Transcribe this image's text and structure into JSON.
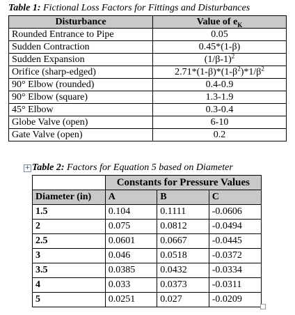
{
  "table1": {
    "caption_label": "Table 1:",
    "caption_text": "Fictional Loss Factors for Fittings and Disturbances",
    "header_col1": "Disturbance",
    "header_col2_text": "Value of e",
    "header_col2_sub": "K",
    "rows": [
      {
        "name": "Rounded Entrance to Pipe",
        "value": "0.05"
      },
      {
        "name": "Sudden Contraction",
        "value": "0.45*(1-β)"
      },
      {
        "name": "Sudden Expansion",
        "value": "(1/β-1)",
        "value_sup": "2"
      },
      {
        "name": "Orifice (sharp-edged)",
        "value_parts": [
          "2.71*(1-β)*(1-β",
          "2",
          ")*1/β",
          "2"
        ]
      },
      {
        "name": "90° Elbow (rounded)",
        "value": "0.4-0.9"
      },
      {
        "name": "90° Elbow (square)",
        "value": "1.3-1.9"
      },
      {
        "name": "45° Elbow",
        "value": "0.3-0.4"
      },
      {
        "name": "Globe Valve (open)",
        "value": "6-10"
      },
      {
        "name": "Gate Valve (open)",
        "value": "0.2"
      }
    ]
  },
  "table2": {
    "anchor_glyph": "+",
    "caption_label": "Table 2:",
    "caption_text": "Factors for Equation 5 based on Diameter",
    "group_header": "Constants for Pressure Values",
    "col_diameter": "Diameter (in)",
    "col_a": "A",
    "col_b": "B",
    "col_c": "C",
    "rows": [
      {
        "d": "1.5",
        "a": "0.104",
        "b": "0.1111",
        "c": "-0.0606"
      },
      {
        "d": "2",
        "a": "0.075",
        "b": "0.0812",
        "c": "-0.0494"
      },
      {
        "d": "2.5",
        "a": "0.0601",
        "b": "0.0667",
        "c": "-0.0445"
      },
      {
        "d": "3",
        "a": "0.046",
        "b": "0.0518",
        "c": "-0.0372"
      },
      {
        "d": "3.5",
        "a": "0.0385",
        "b": "0.0432",
        "c": "-0.0334"
      },
      {
        "d": "4",
        "a": "0.033",
        "b": "0.0373",
        "c": "-0.0311"
      },
      {
        "d": "5",
        "a": "0.0251",
        "b": "0.027",
        "c": "-0.0209"
      }
    ]
  }
}
